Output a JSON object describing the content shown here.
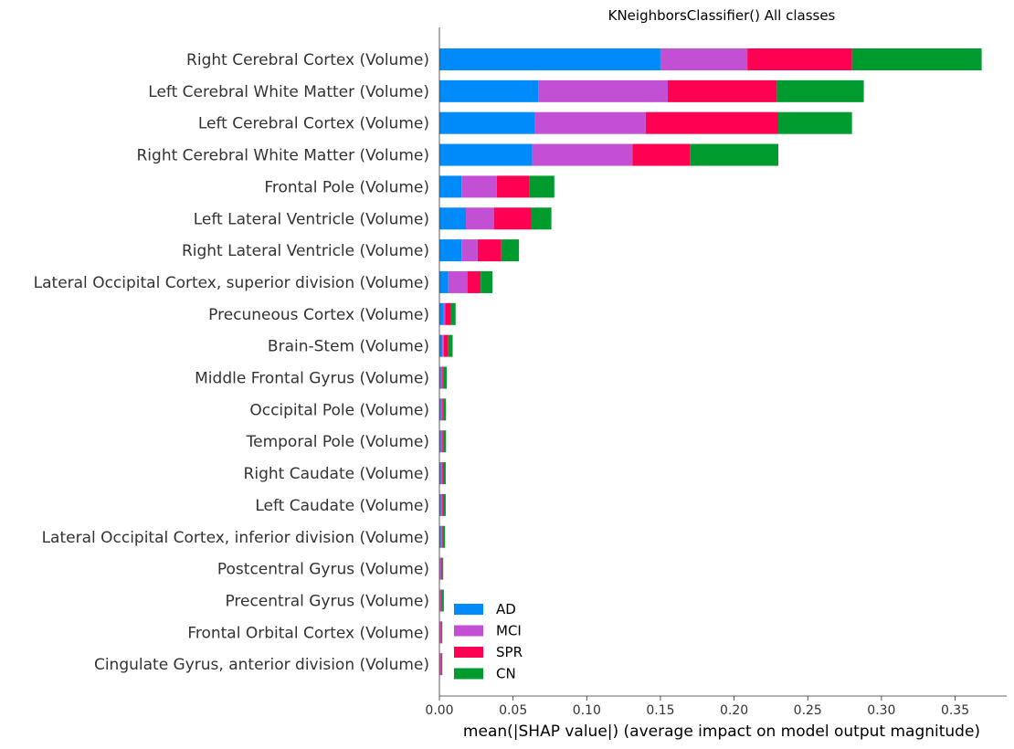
{
  "chart_data": {
    "type": "bar",
    "orientation": "horizontal",
    "stacked": true,
    "title": "KNeighborsClassifier() All classes",
    "xlabel": "mean(|SHAP value|) (average impact on model output magnitude)",
    "ylabel": "",
    "xlim": [
      0,
      0.385
    ],
    "xticks": [
      "0.00",
      "0.05",
      "0.10",
      "0.15",
      "0.20",
      "0.25",
      "0.30",
      "0.35"
    ],
    "xtick_values": [
      0,
      0.05,
      0.1,
      0.15,
      0.2,
      0.25,
      0.3,
      0.35
    ],
    "grid": false,
    "legend_position": "lower-left",
    "colors": {
      "AD": "#008bfb",
      "MCI": "#c34fd4",
      "SPR": "#ff0052",
      "CN": "#009b2e"
    },
    "categories": [
      "Right Cerebral Cortex (Volume)",
      "Left Cerebral White Matter (Volume)",
      "Left Cerebral Cortex  (Volume)",
      "Right Cerebral White Matter (Volume)",
      "Frontal Pole (Volume)",
      "Left Lateral Ventricle (Volume)",
      "Right Lateral Ventricle (Volume)",
      "Lateral Occipital Cortex, superior division (Volume)",
      "Precuneous Cortex (Volume)",
      "Brain-Stem (Volume)",
      "Middle Frontal Gyrus (Volume)",
      "Occipital Pole (Volume)",
      "Temporal Pole (Volume)",
      "Right Caudate (Volume)",
      "Left Caudate (Volume)",
      "Lateral Occipital Cortex, inferior division (Volume)",
      "Postcentral Gyrus (Volume)",
      "Precentral Gyrus (Volume)",
      "Frontal Orbital Cortex (Volume)",
      "Cingulate Gyrus, anterior division (Volume)"
    ],
    "series": [
      {
        "name": "AD",
        "values": [
          0.15,
          0.067,
          0.065,
          0.063,
          0.015,
          0.018,
          0.015,
          0.006,
          0.003,
          0.002,
          0.001,
          0.001,
          0.001,
          0.001,
          0.001,
          0.001,
          0.0005,
          0.0005,
          0.0005,
          0.0005
        ]
      },
      {
        "name": "MCI",
        "values": [
          0.059,
          0.088,
          0.075,
          0.068,
          0.024,
          0.019,
          0.011,
          0.013,
          0.001,
          0.001,
          0.001,
          0.001,
          0.001,
          0.001,
          0.001,
          0.0008,
          0.0008,
          0.0005,
          0.0005,
          0.0005
        ]
      },
      {
        "name": "SPR",
        "values": [
          0.071,
          0.074,
          0.09,
          0.039,
          0.022,
          0.025,
          0.016,
          0.009,
          0.004,
          0.003,
          0.001,
          0.001,
          0.001,
          0.0008,
          0.0008,
          0.0005,
          0.0008,
          0.0005,
          0.0005,
          0.0005
        ]
      },
      {
        "name": "CN",
        "values": [
          0.088,
          0.059,
          0.05,
          0.06,
          0.017,
          0.014,
          0.012,
          0.008,
          0.003,
          0.003,
          0.002,
          0.0015,
          0.0015,
          0.0015,
          0.0015,
          0.0015,
          0.0005,
          0.0015,
          0.0005,
          0.0005
        ]
      }
    ]
  }
}
